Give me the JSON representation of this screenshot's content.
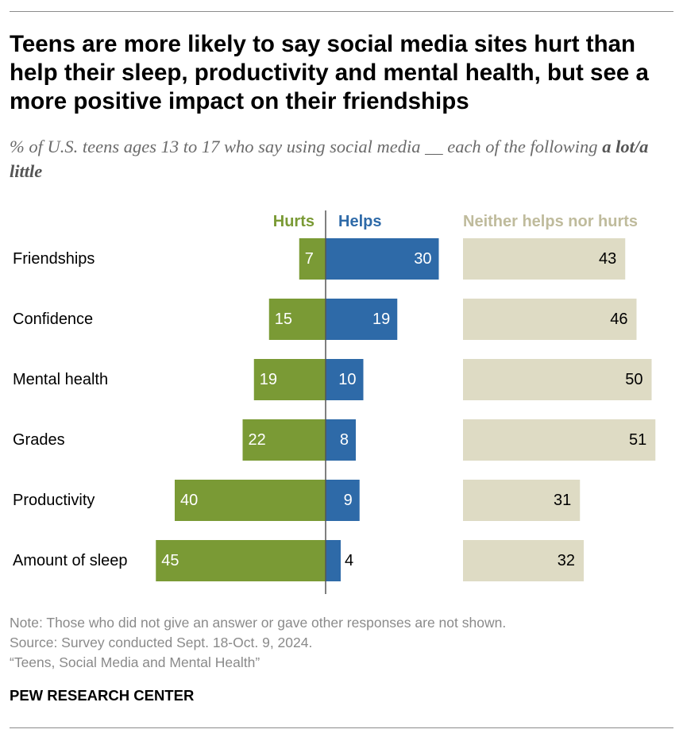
{
  "title": "Teens are more likely to say social media sites hurt than help their sleep, productivity and mental health, but see a more positive impact on their friendships",
  "subtitle": {
    "main": "% of U.S. teens ages 13 to 17 who say using social media __ each of the following ",
    "emphasis": "a lot/a little"
  },
  "chart_data": {
    "type": "bar",
    "orientation": "horizontal",
    "layout": "diverging bars (Hurts vs. Helps) plus separate bars for Neither",
    "categories": [
      "Friendships",
      "Confidence",
      "Mental health",
      "Grades",
      "Productivity",
      "Amount of sleep"
    ],
    "series": [
      {
        "name": "Hurts",
        "values": [
          7,
          15,
          19,
          22,
          40,
          45
        ],
        "color": "#7a9a35"
      },
      {
        "name": "Helps",
        "values": [
          30,
          19,
          10,
          8,
          9,
          4
        ],
        "color": "#2e6aa8"
      },
      {
        "name": "Neither helps nor hurts",
        "values": [
          43,
          46,
          50,
          51,
          31,
          32
        ],
        "color": "#dedbc4"
      }
    ],
    "legend_colors": {
      "Hurts": "#7a9a35",
      "Helps": "#2e6aa8",
      "Neither helps nor hurts": "#bfbb9c"
    },
    "data_labels": true
  },
  "notes": {
    "note": "Note: Those who did not give an answer or gave other responses are not shown.",
    "source": "Source: Survey conducted Sept. 18-Oct. 9, 2024.",
    "report": "“Teens, Social Media and Mental Health”"
  },
  "org": "PEW RESEARCH CENTER"
}
